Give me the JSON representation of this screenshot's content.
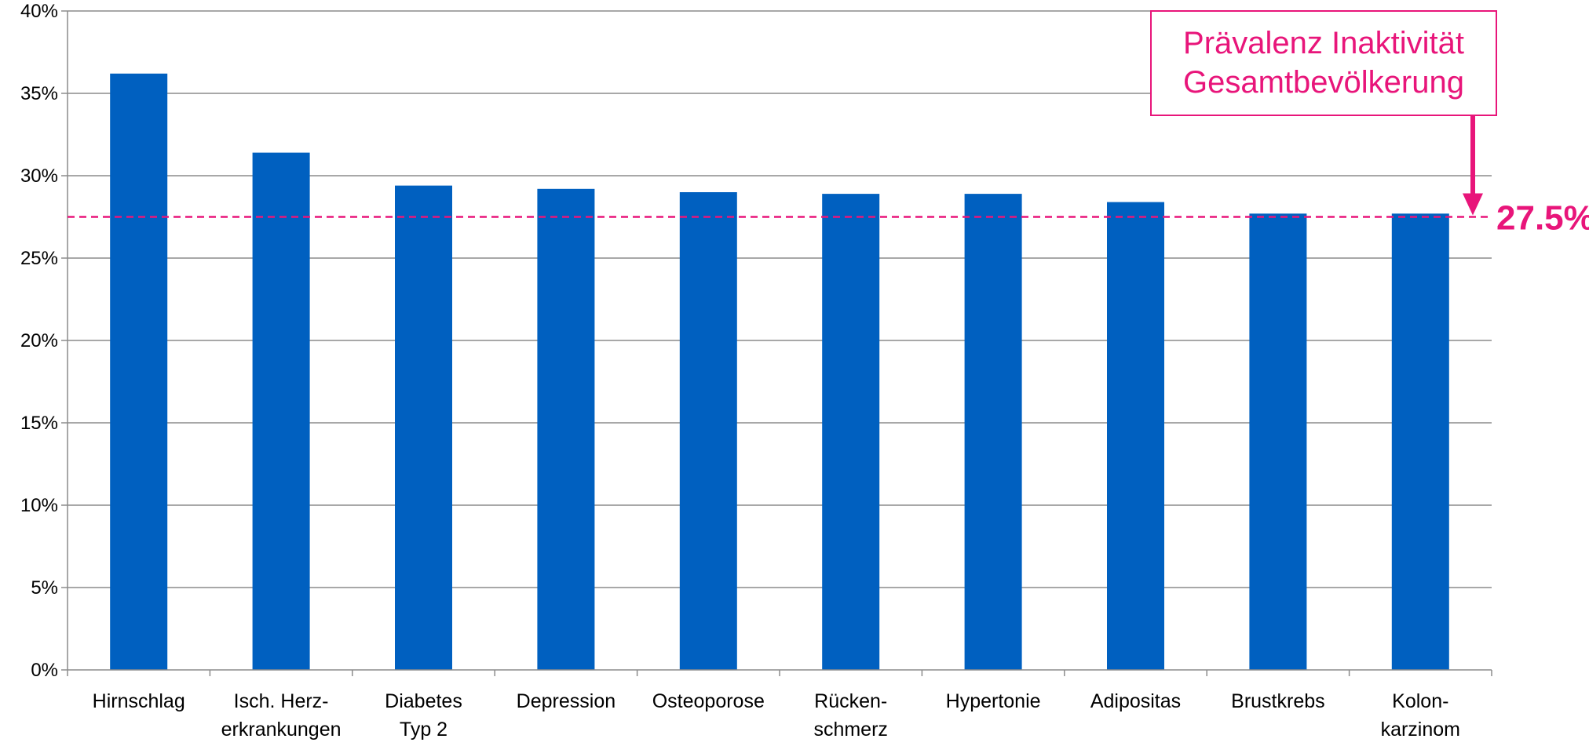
{
  "chart_data": {
    "type": "bar",
    "categories": [
      [
        "Hirnschlag"
      ],
      [
        "Isch. Herz-",
        "erkrankungen"
      ],
      [
        "Diabetes",
        "Typ 2"
      ],
      [
        "Depression"
      ],
      [
        "Osteoporose"
      ],
      [
        "Rücken-",
        "schmerz"
      ],
      [
        "Hypertonie"
      ],
      [
        "Adipositas"
      ],
      [
        "Brustkrebs"
      ],
      [
        "Kolon-",
        "karzinom"
      ]
    ],
    "values": [
      36.2,
      31.4,
      29.4,
      29.2,
      29.0,
      28.9,
      28.9,
      28.4,
      27.7,
      27.7
    ],
    "ylim": [
      0,
      40
    ],
    "y_ticks": [
      0,
      5,
      10,
      15,
      20,
      25,
      30,
      35,
      40
    ],
    "y_tick_format": "%",
    "grid": true,
    "bar_color": "#0060C0",
    "reference_line": {
      "value": 27.5,
      "value_label": "27.5%",
      "color": "#E8157A",
      "callout_lines": [
        "Prävalenz Inaktivität",
        "Gesamtbevölkerung"
      ]
    }
  }
}
